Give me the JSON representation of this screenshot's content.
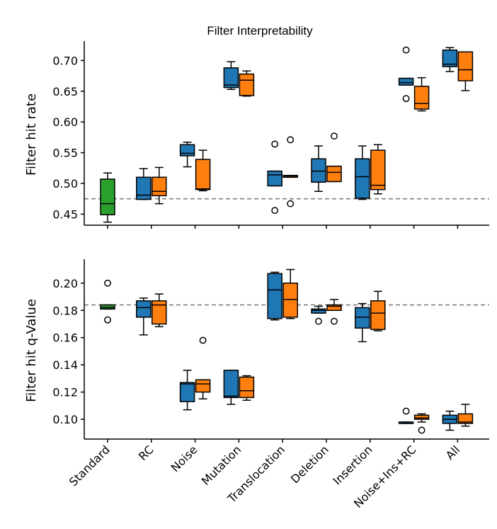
{
  "chart_data": {
    "type": "boxplot",
    "title": "Filter Interpretability",
    "categories": [
      "Standard",
      "RC",
      "Noise",
      "Mutation",
      "Translocation",
      "Deletion",
      "Insertion",
      "Noise+Ins+RC",
      "All"
    ],
    "colors": {
      "standard": "#2ca02c",
      "blue": "#1f77b4",
      "orange": "#ff7f0e"
    },
    "panels": [
      {
        "ylabel": "Filter hit rate",
        "ylim": [
          0.432,
          0.727
        ],
        "yticks": [
          "0.45",
          "0.50",
          "0.55",
          "0.60",
          "0.65",
          "0.70"
        ],
        "reference_line": 0.475,
        "boxes": [
          {
            "category": "Standard",
            "series": "standard",
            "whislo": 0.437,
            "q1": 0.449,
            "med": 0.467,
            "q3": 0.507,
            "whishi": 0.517,
            "fliers": []
          },
          {
            "category": "RC",
            "series": "blue",
            "whislo": 0.474,
            "q1": 0.474,
            "med": 0.481,
            "q3": 0.51,
            "whishi": 0.524,
            "fliers": []
          },
          {
            "category": "RC",
            "series": "orange",
            "whislo": 0.467,
            "q1": 0.48,
            "med": 0.487,
            "q3": 0.51,
            "whishi": 0.526,
            "fliers": []
          },
          {
            "category": "Noise",
            "series": "blue",
            "whislo": 0.527,
            "q1": 0.545,
            "med": 0.549,
            "q3": 0.563,
            "whishi": 0.567,
            "fliers": []
          },
          {
            "category": "Noise",
            "series": "orange",
            "whislo": 0.488,
            "q1": 0.49,
            "med": 0.491,
            "q3": 0.539,
            "whishi": 0.554,
            "fliers": []
          },
          {
            "category": "Mutation",
            "series": "blue",
            "whislo": 0.653,
            "q1": 0.656,
            "med": 0.66,
            "q3": 0.688,
            "whishi": 0.698,
            "fliers": []
          },
          {
            "category": "Mutation",
            "series": "orange",
            "whislo": 0.642,
            "q1": 0.643,
            "med": 0.668,
            "q3": 0.678,
            "whishi": 0.683,
            "fliers": []
          },
          {
            "category": "Translocation",
            "series": "blue",
            "whislo": 0.496,
            "q1": 0.496,
            "med": 0.514,
            "q3": 0.52,
            "whishi": 0.52,
            "fliers": [
              0.564,
              0.456
            ]
          },
          {
            "category": "Translocation",
            "series": "orange",
            "whislo": 0.51,
            "q1": 0.51,
            "med": 0.512,
            "q3": 0.513,
            "whishi": 0.513,
            "fliers": [
              0.571,
              0.467
            ]
          },
          {
            "category": "Deletion",
            "series": "blue",
            "whislo": 0.487,
            "q1": 0.502,
            "med": 0.52,
            "q3": 0.54,
            "whishi": 0.561,
            "fliers": []
          },
          {
            "category": "Deletion",
            "series": "orange",
            "whislo": 0.503,
            "q1": 0.503,
            "med": 0.518,
            "q3": 0.528,
            "whishi": 0.528,
            "fliers": [
              0.577
            ]
          },
          {
            "category": "Insertion",
            "series": "blue",
            "whislo": 0.474,
            "q1": 0.476,
            "med": 0.511,
            "q3": 0.54,
            "whishi": 0.561,
            "fliers": []
          },
          {
            "category": "Insertion",
            "series": "orange",
            "whislo": 0.483,
            "q1": 0.49,
            "med": 0.497,
            "q3": 0.554,
            "whishi": 0.563,
            "fliers": []
          },
          {
            "category": "Noise+Ins+RC",
            "series": "blue",
            "whislo": 0.66,
            "q1": 0.66,
            "med": 0.664,
            "q3": 0.671,
            "whishi": 0.671,
            "fliers": [
              0.717,
              0.638
            ]
          },
          {
            "category": "Noise+Ins+RC",
            "series": "orange",
            "whislo": 0.618,
            "q1": 0.621,
            "med": 0.63,
            "q3": 0.658,
            "whishi": 0.672,
            "fliers": []
          },
          {
            "category": "All",
            "series": "blue",
            "whislo": 0.682,
            "q1": 0.69,
            "med": 0.694,
            "q3": 0.717,
            "whishi": 0.721,
            "fliers": []
          },
          {
            "category": "All",
            "series": "orange",
            "whislo": 0.651,
            "q1": 0.667,
            "med": 0.685,
            "q3": 0.714,
            "whishi": 0.714,
            "fliers": []
          }
        ]
      },
      {
        "ylabel": "Filter hit q-Value",
        "ylim": [
          0.0855,
          0.2155
        ],
        "yticks": [
          "0.10",
          "0.12",
          "0.14",
          "0.16",
          "0.18",
          "0.20"
        ],
        "reference_line": 0.184,
        "boxes": [
          {
            "category": "Standard",
            "series": "standard",
            "whislo": 0.181,
            "q1": 0.181,
            "med": 0.182,
            "q3": 0.184,
            "whishi": 0.184,
            "fliers": [
              0.2,
              0.173
            ]
          },
          {
            "category": "RC",
            "series": "blue",
            "whislo": 0.162,
            "q1": 0.175,
            "med": 0.182,
            "q3": 0.187,
            "whishi": 0.189,
            "fliers": []
          },
          {
            "category": "RC",
            "series": "orange",
            "whislo": 0.168,
            "q1": 0.17,
            "med": 0.184,
            "q3": 0.187,
            "whishi": 0.192,
            "fliers": []
          },
          {
            "category": "Noise",
            "series": "blue",
            "whislo": 0.107,
            "q1": 0.113,
            "med": 0.126,
            "q3": 0.127,
            "whishi": 0.136,
            "fliers": []
          },
          {
            "category": "Noise",
            "series": "orange",
            "whislo": 0.115,
            "q1": 0.12,
            "med": 0.126,
            "q3": 0.129,
            "whishi": 0.129,
            "fliers": [
              0.158
            ]
          },
          {
            "category": "Mutation",
            "series": "blue",
            "whislo": 0.111,
            "q1": 0.116,
            "med": 0.117,
            "q3": 0.136,
            "whishi": 0.136,
            "fliers": []
          },
          {
            "category": "Mutation",
            "series": "orange",
            "whislo": 0.114,
            "q1": 0.116,
            "med": 0.121,
            "q3": 0.131,
            "whishi": 0.132,
            "fliers": []
          },
          {
            "category": "Translocation",
            "series": "blue",
            "whislo": 0.173,
            "q1": 0.174,
            "med": 0.195,
            "q3": 0.207,
            "whishi": 0.208,
            "fliers": []
          },
          {
            "category": "Translocation",
            "series": "orange",
            "whislo": 0.174,
            "q1": 0.175,
            "med": 0.188,
            "q3": 0.2,
            "whishi": 0.21,
            "fliers": []
          },
          {
            "category": "Deletion",
            "series": "blue",
            "whislo": 0.178,
            "q1": 0.178,
            "med": 0.18,
            "q3": 0.181,
            "whishi": 0.183,
            "fliers": [
              0.172
            ]
          },
          {
            "category": "Deletion",
            "series": "orange",
            "whislo": 0.18,
            "q1": 0.18,
            "med": 0.183,
            "q3": 0.184,
            "whishi": 0.188,
            "fliers": [
              0.172
            ]
          },
          {
            "category": "Insertion",
            "series": "blue",
            "whislo": 0.157,
            "q1": 0.167,
            "med": 0.175,
            "q3": 0.182,
            "whishi": 0.185,
            "fliers": []
          },
          {
            "category": "Insertion",
            "series": "orange",
            "whislo": 0.165,
            "q1": 0.166,
            "med": 0.178,
            "q3": 0.187,
            "whishi": 0.194,
            "fliers": []
          },
          {
            "category": "Noise+Ins+RC",
            "series": "blue",
            "whislo": 0.097,
            "q1": 0.097,
            "med": 0.097,
            "q3": 0.098,
            "whishi": 0.098,
            "fliers": [
              0.106
            ]
          },
          {
            "category": "Noise+Ins+RC",
            "series": "orange",
            "whislo": 0.098,
            "q1": 0.1,
            "med": 0.101,
            "q3": 0.103,
            "whishi": 0.104,
            "fliers": [
              0.092
            ]
          },
          {
            "category": "All",
            "series": "blue",
            "whislo": 0.092,
            "q1": 0.097,
            "med": 0.1,
            "q3": 0.103,
            "whishi": 0.106,
            "fliers": []
          },
          {
            "category": "All",
            "series": "orange",
            "whislo": 0.095,
            "q1": 0.097,
            "med": 0.098,
            "q3": 0.104,
            "whishi": 0.111,
            "fliers": []
          }
        ]
      }
    ]
  }
}
